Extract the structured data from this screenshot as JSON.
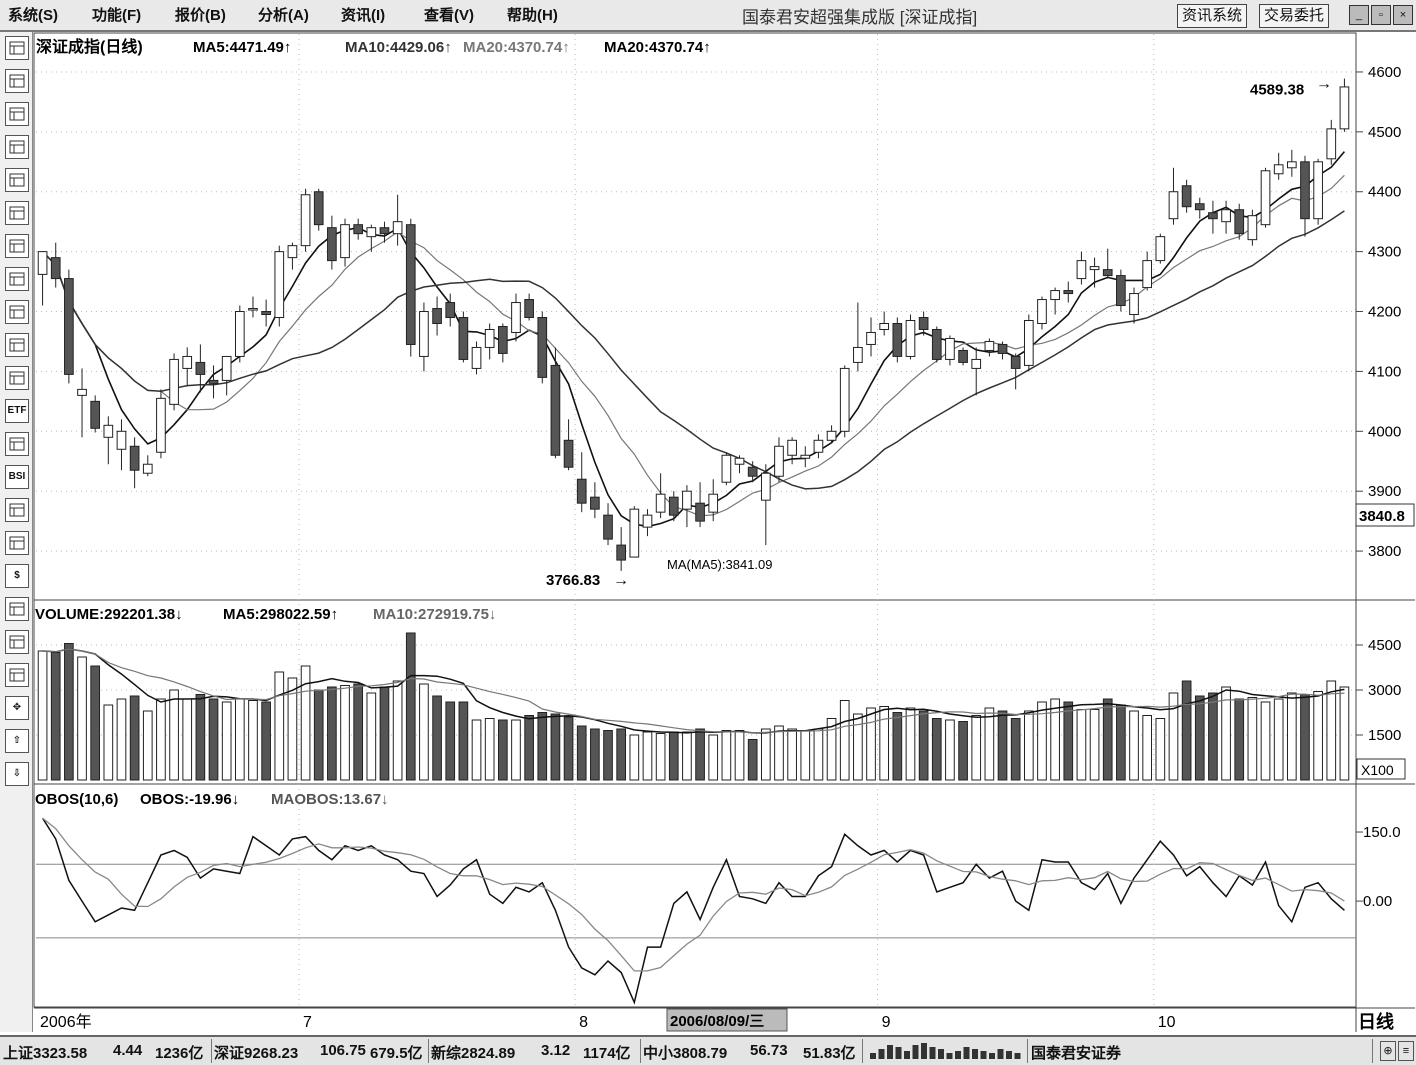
{
  "menu": [
    "系统(S)",
    "功能(F)",
    "报价(B)",
    "分析(A)",
    "资讯(I)",
    "查看(V)",
    "帮助(H)"
  ],
  "app_title": "国泰君安超强集成版 [深证成指]",
  "buttons": {
    "news": "资讯系统",
    "trade": "交易委托"
  },
  "window_controls": {
    "minimize": "_",
    "restore": "▫",
    "close": "×"
  },
  "toolbar_icons": [
    "table-icon",
    "list-icon",
    "line-chart-icon",
    "kline-icon",
    "multi-chart-icon",
    "report-icon",
    "f10-icon",
    "mail-icon",
    "group-icon",
    "compass-icon",
    "search-icon",
    "etf-icon",
    "wave-icon",
    "bsi-icon",
    "filter-icon",
    "grid-icon",
    "dollar-icon",
    "pen-tool-icon",
    "export-icon",
    "pencil-icon",
    "move-icon",
    "up-arrow-icon",
    "down-arrow-icon"
  ],
  "toolbar_labels": [
    "",
    "",
    "",
    "",
    "",
    "",
    "",
    "",
    "",
    "",
    "",
    "ETF",
    "",
    "BSI",
    "",
    "",
    "$",
    "",
    "",
    "",
    "✥",
    "⇧",
    "⇩"
  ],
  "price_panel": {
    "header": {
      "title": "深证成指(日线)",
      "ma5": "MA5:4471.49↑",
      "ma10": "MA10:4429.06↑",
      "ma20a": "MA20:4370.74↑",
      "ma20b": "MA20:4370.74↑"
    },
    "y_ticks": [
      4600,
      4500,
      4400,
      4300,
      4200,
      4100,
      4000,
      3900,
      3800
    ],
    "y_tick_labels": [
      "4600",
      "4500",
      "4400",
      "4300",
      "4200",
      "4100",
      "4000",
      "3900",
      "3800"
    ],
    "current_price_label": "3840.8",
    "current_price": 3840.8,
    "annotations": {
      "high_label": "4589.38",
      "high_value": 4589.38,
      "low_label": "3766.83",
      "low_value": 3766.83,
      "ma_readout": "MA(MA5):3841.09",
      "high_arrow": "→",
      "low_arrow": "→"
    }
  },
  "volume_panel": {
    "header": {
      "volume": "VOLUME:292201.38↓",
      "ma5": "MA5:298022.59↑",
      "ma10": "MA10:272919.75↓"
    },
    "y_ticks": [
      4500,
      3000,
      1500
    ],
    "y_tick_labels": [
      "4500",
      "3000",
      "1500"
    ],
    "unit_label": "X100"
  },
  "obos_panel": {
    "header": {
      "obos_params": "OBOS(10,6)",
      "obos": "OBOS:-19.96↓",
      "maobos": "MAOBOS:13.67↓"
    },
    "y_ticks": [
      150,
      0
    ],
    "y_tick_labels": [
      "150.0",
      "0.00"
    ],
    "reference_lines": [
      80,
      -80
    ]
  },
  "x_axis": {
    "labels": [
      {
        "text": "2006年",
        "index": 0
      },
      {
        "text": "7",
        "index": 20
      },
      {
        "text": "8",
        "index": 41
      },
      {
        "text": "9",
        "index": 64
      },
      {
        "text": "10",
        "index": 85
      }
    ],
    "cursor_date": "2006/08/09/三",
    "cursor_index": 48,
    "period_label": "日线"
  },
  "chart_data": {
    "type": "candlestick",
    "title": "深证成指(日线)",
    "ylim": [
      3720,
      4640
    ],
    "candles": [
      {
        "o": 4262,
        "h": 4300,
        "l": 4210,
        "c": 4300
      },
      {
        "o": 4290,
        "h": 4315,
        "l": 4240,
        "c": 4255
      },
      {
        "o": 4255,
        "h": 4270,
        "l": 4080,
        "c": 4095
      },
      {
        "o": 4060,
        "h": 4105,
        "l": 3990,
        "c": 4070
      },
      {
        "o": 4050,
        "h": 4060,
        "l": 3998,
        "c": 4005
      },
      {
        "o": 3990,
        "h": 4025,
        "l": 3945,
        "c": 4010
      },
      {
        "o": 3970,
        "h": 4020,
        "l": 3935,
        "c": 4000
      },
      {
        "o": 3975,
        "h": 3990,
        "l": 3905,
        "c": 3935
      },
      {
        "o": 3930,
        "h": 3960,
        "l": 3925,
        "c": 3945
      },
      {
        "o": 3965,
        "h": 4070,
        "l": 3955,
        "c": 4055
      },
      {
        "o": 4045,
        "h": 4130,
        "l": 4035,
        "c": 4120
      },
      {
        "o": 4105,
        "h": 4140,
        "l": 4075,
        "c": 4125
      },
      {
        "o": 4115,
        "h": 4145,
        "l": 4065,
        "c": 4095
      },
      {
        "o": 4085,
        "h": 4110,
        "l": 4055,
        "c": 4080
      },
      {
        "o": 4085,
        "h": 4125,
        "l": 4060,
        "c": 4125
      },
      {
        "o": 4125,
        "h": 4210,
        "l": 4115,
        "c": 4200
      },
      {
        "o": 4205,
        "h": 4225,
        "l": 4190,
        "c": 4205
      },
      {
        "o": 4200,
        "h": 4220,
        "l": 4175,
        "c": 4195
      },
      {
        "o": 4190,
        "h": 4310,
        "l": 4175,
        "c": 4300
      },
      {
        "o": 4290,
        "h": 4315,
        "l": 4270,
        "c": 4310
      },
      {
        "o": 4310,
        "h": 4405,
        "l": 4300,
        "c": 4395
      },
      {
        "o": 4400,
        "h": 4405,
        "l": 4335,
        "c": 4345
      },
      {
        "o": 4340,
        "h": 4360,
        "l": 4270,
        "c": 4285
      },
      {
        "o": 4290,
        "h": 4355,
        "l": 4275,
        "c": 4345
      },
      {
        "o": 4345,
        "h": 4355,
        "l": 4320,
        "c": 4330
      },
      {
        "o": 4325,
        "h": 4345,
        "l": 4300,
        "c": 4340
      },
      {
        "o": 4340,
        "h": 4350,
        "l": 4315,
        "c": 4330
      },
      {
        "o": 4330,
        "h": 4395,
        "l": 4310,
        "c": 4350
      },
      {
        "o": 4345,
        "h": 4355,
        "l": 4125,
        "c": 4145
      },
      {
        "o": 4125,
        "h": 4215,
        "l": 4100,
        "c": 4200
      },
      {
        "o": 4205,
        "h": 4225,
        "l": 4160,
        "c": 4180
      },
      {
        "o": 4215,
        "h": 4230,
        "l": 4175,
        "c": 4190
      },
      {
        "o": 4190,
        "h": 4200,
        "l": 4115,
        "c": 4120
      },
      {
        "o": 4105,
        "h": 4150,
        "l": 4095,
        "c": 4140
      },
      {
        "o": 4140,
        "h": 4180,
        "l": 4120,
        "c": 4170
      },
      {
        "o": 4175,
        "h": 4180,
        "l": 4115,
        "c": 4130
      },
      {
        "o": 4165,
        "h": 4230,
        "l": 4150,
        "c": 4215
      },
      {
        "o": 4220,
        "h": 4230,
        "l": 4185,
        "c": 4190
      },
      {
        "o": 4190,
        "h": 4200,
        "l": 4080,
        "c": 4090
      },
      {
        "o": 4110,
        "h": 4140,
        "l": 3955,
        "c": 3960
      },
      {
        "o": 3985,
        "h": 4020,
        "l": 3935,
        "c": 3940
      },
      {
        "o": 3920,
        "h": 3965,
        "l": 3865,
        "c": 3880
      },
      {
        "o": 3890,
        "h": 3915,
        "l": 3855,
        "c": 3870
      },
      {
        "o": 3860,
        "h": 3880,
        "l": 3810,
        "c": 3820
      },
      {
        "o": 3810,
        "h": 3840,
        "l": 3767,
        "c": 3785
      },
      {
        "o": 3790,
        "h": 3875,
        "l": 3790,
        "c": 3870
      },
      {
        "o": 3840,
        "h": 3870,
        "l": 3825,
        "c": 3860
      },
      {
        "o": 3865,
        "h": 3930,
        "l": 3855,
        "c": 3895
      },
      {
        "o": 3890,
        "h": 3900,
        "l": 3850,
        "c": 3860
      },
      {
        "o": 3870,
        "h": 3910,
        "l": 3840,
        "c": 3900
      },
      {
        "o": 3880,
        "h": 3915,
        "l": 3840,
        "c": 3850
      },
      {
        "o": 3865,
        "h": 3920,
        "l": 3850,
        "c": 3895
      },
      {
        "o": 3915,
        "h": 3965,
        "l": 3910,
        "c": 3960
      },
      {
        "o": 3945,
        "h": 3960,
        "l": 3930,
        "c": 3955
      },
      {
        "o": 3940,
        "h": 3950,
        "l": 3915,
        "c": 3925
      },
      {
        "o": 3885,
        "h": 3945,
        "l": 3810,
        "c": 3930
      },
      {
        "o": 3925,
        "h": 3990,
        "l": 3915,
        "c": 3975
      },
      {
        "o": 3960,
        "h": 3990,
        "l": 3945,
        "c": 3985
      },
      {
        "o": 3955,
        "h": 3975,
        "l": 3940,
        "c": 3960
      },
      {
        "o": 3965,
        "h": 3995,
        "l": 3955,
        "c": 3985
      },
      {
        "o": 3985,
        "h": 4010,
        "l": 3980,
        "c": 4000
      },
      {
        "o": 4000,
        "h": 4110,
        "l": 3990,
        "c": 4105
      },
      {
        "o": 4115,
        "h": 4215,
        "l": 4100,
        "c": 4140
      },
      {
        "o": 4145,
        "h": 4190,
        "l": 4125,
        "c": 4165
      },
      {
        "o": 4170,
        "h": 4200,
        "l": 4160,
        "c": 4180
      },
      {
        "o": 4180,
        "h": 4190,
        "l": 4115,
        "c": 4125
      },
      {
        "o": 4125,
        "h": 4195,
        "l": 4120,
        "c": 4185
      },
      {
        "o": 4190,
        "h": 4200,
        "l": 4160,
        "c": 4170
      },
      {
        "o": 4170,
        "h": 4175,
        "l": 4115,
        "c": 4120
      },
      {
        "o": 4120,
        "h": 4160,
        "l": 4110,
        "c": 4155
      },
      {
        "o": 4135,
        "h": 4140,
        "l": 4110,
        "c": 4115
      },
      {
        "o": 4105,
        "h": 4140,
        "l": 4060,
        "c": 4120
      },
      {
        "o": 4135,
        "h": 4155,
        "l": 4125,
        "c": 4150
      },
      {
        "o": 4145,
        "h": 4150,
        "l": 4120,
        "c": 4130
      },
      {
        "o": 4125,
        "h": 4130,
        "l": 4070,
        "c": 4105
      },
      {
        "o": 4110,
        "h": 4195,
        "l": 4100,
        "c": 4185
      },
      {
        "o": 4180,
        "h": 4225,
        "l": 4170,
        "c": 4220
      },
      {
        "o": 4220,
        "h": 4240,
        "l": 4195,
        "c": 4235
      },
      {
        "o": 4235,
        "h": 4250,
        "l": 4215,
        "c": 4230
      },
      {
        "o": 4255,
        "h": 4300,
        "l": 4245,
        "c": 4285
      },
      {
        "o": 4270,
        "h": 4290,
        "l": 4240,
        "c": 4275
      },
      {
        "o": 4270,
        "h": 4305,
        "l": 4255,
        "c": 4260
      },
      {
        "o": 4260,
        "h": 4270,
        "l": 4200,
        "c": 4210
      },
      {
        "o": 4195,
        "h": 4240,
        "l": 4180,
        "c": 4230
      },
      {
        "o": 4240,
        "h": 4300,
        "l": 4235,
        "c": 4285
      },
      {
        "o": 4285,
        "h": 4330,
        "l": 4280,
        "c": 4325
      },
      {
        "o": 4355,
        "h": 4440,
        "l": 4345,
        "c": 4400
      },
      {
        "o": 4410,
        "h": 4420,
        "l": 4365,
        "c": 4375
      },
      {
        "o": 4380,
        "h": 4390,
        "l": 4355,
        "c": 4370
      },
      {
        "o": 4365,
        "h": 4385,
        "l": 4330,
        "c": 4355
      },
      {
        "o": 4350,
        "h": 4385,
        "l": 4330,
        "c": 4370
      },
      {
        "o": 4370,
        "h": 4380,
        "l": 4320,
        "c": 4330
      },
      {
        "o": 4320,
        "h": 4370,
        "l": 4310,
        "c": 4360
      },
      {
        "o": 4345,
        "h": 4440,
        "l": 4340,
        "c": 4435
      },
      {
        "o": 4430,
        "h": 4465,
        "l": 4420,
        "c": 4445
      },
      {
        "o": 4440,
        "h": 4470,
        "l": 4425,
        "c": 4450
      },
      {
        "o": 4450,
        "h": 4460,
        "l": 4325,
        "c": 4355
      },
      {
        "o": 4355,
        "h": 4455,
        "l": 4345,
        "c": 4450
      },
      {
        "o": 4455,
        "h": 4520,
        "l": 4445,
        "c": 4505
      },
      {
        "o": 4505,
        "h": 4589,
        "l": 4500,
        "c": 4575
      }
    ],
    "volume": [
      4300,
      4250,
      4550,
      4100,
      3800,
      2500,
      2700,
      2800,
      2300,
      2700,
      3000,
      2700,
      2850,
      2700,
      2600,
      2700,
      2650,
      2600,
      3600,
      3400,
      3800,
      3000,
      3100,
      3150,
      3200,
      2900,
      3100,
      3300,
      4900,
      3200,
      2800,
      2600,
      2600,
      2000,
      2050,
      2000,
      2000,
      2150,
      2250,
      2200,
      2100,
      1800,
      1700,
      1650,
      1700,
      1500,
      1600,
      1550,
      1600,
      1600,
      1700,
      1500,
      1650,
      1650,
      1350,
      1700,
      1800,
      1700,
      1650,
      1700,
      2050,
      2650,
      2200,
      2400,
      2450,
      2250,
      2400,
      2300,
      2050,
      2000,
      1950,
      2150,
      2400,
      2300,
      2050,
      2300,
      2600,
      2700,
      2600,
      2350,
      2350,
      2700,
      2500,
      2300,
      2150,
      2050,
      2900,
      3300,
      2800,
      2900,
      3100,
      2700,
      2750,
      2600,
      2700,
      2900,
      2850,
      2950,
      3300,
      3100
    ],
    "obos": [
      180,
      135,
      45,
      0,
      -45,
      -30,
      -15,
      -20,
      40,
      100,
      110,
      95,
      50,
      70,
      65,
      60,
      140,
      120,
      100,
      135,
      140,
      110,
      90,
      120,
      110,
      120,
      100,
      90,
      65,
      60,
      10,
      35,
      70,
      90,
      15,
      -5,
      30,
      20,
      40,
      -20,
      -100,
      -145,
      -160,
      -130,
      -155,
      -220,
      -100,
      -100,
      -5,
      20,
      -40,
      30,
      90,
      10,
      5,
      -5,
      40,
      10,
      10,
      55,
      75,
      145,
      120,
      100,
      110,
      85,
      110,
      100,
      20,
      30,
      40,
      80,
      50,
      65,
      0,
      -20,
      90,
      85,
      85,
      40,
      25,
      60,
      -5,
      50,
      90,
      130,
      100,
      55,
      75,
      40,
      10,
      55,
      35,
      85,
      -10,
      -45,
      30,
      40,
      5,
      -20
    ]
  },
  "status_bar": {
    "sh": "上证3323.58",
    "sh_chg": "4.44",
    "sh_amt": "1236亿",
    "sz": "深证9268.23",
    "sz_chg": "106.75",
    "sz_amt": "679.5亿",
    "xz": "新综2824.89",
    "xz_chg": "3.12",
    "xz_amt": "1174亿",
    "zx": "中小3808.79",
    "zx_chg": "56.73",
    "zx_amt": "51.83亿",
    "broker": "国泰君安证券"
  },
  "colors": {
    "up": "#ffffff",
    "down": "#555555",
    "outline": "#222222",
    "ma5": "#111111",
    "ma10": "#555555",
    "ma20": "#333333",
    "grid": "#aaaaaa"
  }
}
